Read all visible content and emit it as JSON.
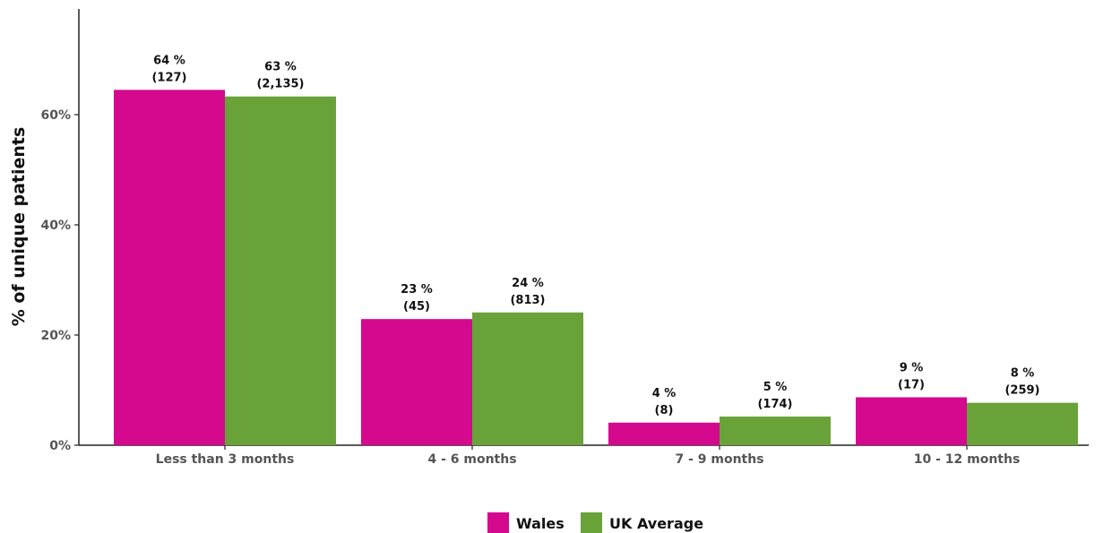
{
  "chart_data": {
    "type": "bar",
    "categories": [
      "Less than 3 months",
      "4 - 6 months",
      "7 - 9 months",
      "10 - 12 months"
    ],
    "series": [
      {
        "name": "Wales",
        "color": "#d4098e",
        "values": [
          64.5,
          22.9,
          4.1,
          8.7
        ],
        "labels": [
          [
            "64 %",
            "(127)"
          ],
          [
            "23 %",
            "(45)"
          ],
          [
            "4 %",
            "(8)"
          ],
          [
            "9 %",
            "(17)"
          ]
        ]
      },
      {
        "name": "UK Average",
        "color": "#6aa23a",
        "values": [
          63.3,
          24.1,
          5.2,
          7.7
        ],
        "labels": [
          [
            "63 %",
            "(2,135)"
          ],
          [
            "24 %",
            "(813)"
          ],
          [
            "5 %",
            "(174)"
          ],
          [
            "8 %",
            "(259)"
          ]
        ]
      }
    ],
    "title": "",
    "xlabel": "",
    "ylabel": "% of unique patients",
    "ylim": [
      0,
      80
    ],
    "yticks": [
      0,
      20,
      40,
      60
    ],
    "ytick_labels": [
      "0%",
      "20%",
      "40%",
      "60%"
    ],
    "grid": false,
    "legend_position": "bottom-center"
  }
}
